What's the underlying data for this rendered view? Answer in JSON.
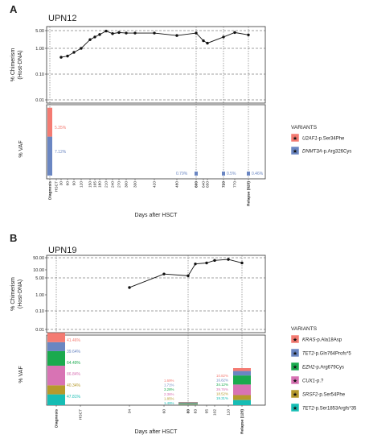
{
  "chart_data": [
    {
      "panel": "A",
      "patient": "UPN12",
      "type": "line",
      "ylabel_chimerism": "% Chimerism (Host-DNA)",
      "ylabel_vaf": "% VAF",
      "xlabel": "Days after HSCT",
      "yscale": "log",
      "yticks": [
        "5.00",
        "1.00",
        "0.10",
        "0.01"
      ],
      "xticks": [
        "Diagnosis",
        "HSCT",
        "30",
        "60",
        "90",
        "120",
        "150",
        "165",
        "180",
        "210",
        "240",
        "270",
        "300",
        "330",
        "420",
        "480",
        "600",
        "640",
        "650",
        "720",
        "770",
        "Relapse (820)"
      ],
      "bold_ticks": [
        "Diagnosis",
        "600",
        "720",
        "Relapse (820)"
      ],
      "chimerism": {
        "x": [
          30,
          60,
          90,
          120,
          150,
          165,
          180,
          210,
          240,
          270,
          300,
          330,
          420,
          480,
          600,
          640,
          650,
          720,
          770,
          820
        ],
        "y": [
          0.45,
          0.5,
          0.7,
          1.0,
          2.2,
          2.8,
          3.5,
          4.8,
          3.8,
          4.2,
          4.0,
          4.0,
          4.0,
          3.2,
          4.0,
          2.0,
          1.6,
          2.8,
          4.2,
          3.4
        ]
      },
      "legend_title": "VARIANTS",
      "variants": [
        {
          "gene": "U2AF1",
          "protein": "-p.Ser34Phe",
          "color": "#f47b72"
        },
        {
          "gene": "DNMT3A",
          "protein": "-p.Arg326Cys",
          "color": "#6a86c2"
        }
      ],
      "vaf": [
        {
          "timepoint": "Diagnosis",
          "values": [
            "5.35%",
            "7.12%"
          ]
        },
        {
          "timepoint": "600",
          "values": [
            "",
            "0.79%"
          ]
        },
        {
          "timepoint": "720",
          "values": [
            "",
            "0.5%"
          ]
        },
        {
          "timepoint": "Relapse (820)",
          "values": [
            "",
            "0.46%"
          ]
        }
      ]
    },
    {
      "panel": "B",
      "patient": "UPN19",
      "type": "line",
      "ylabel_chimerism": "% Chimerism (Host-DNA)",
      "ylabel_vaf": "% VAF",
      "xlabel": "Days after HSCT",
      "yscale": "log",
      "yticks": [
        "50.00",
        "10.00",
        "5.00",
        "1.00",
        "0.10",
        "0.01"
      ],
      "xticks": [
        "Diagnosis",
        "HSCT",
        "34",
        "60",
        "80",
        "83",
        "95",
        "102",
        "110",
        "Relapse (120)"
      ],
      "bold_ticks": [
        "Diagnosis",
        "80",
        "Relapse (120)"
      ],
      "chimerism": {
        "x": [
          34,
          60,
          80,
          83,
          95,
          102,
          110,
          120
        ],
        "y": [
          2.0,
          7.0,
          6.0,
          22.0,
          25.0,
          35.0,
          40.0,
          25.0
        ]
      },
      "legend_title": "VARIANTS",
      "variants": [
        {
          "gene": "KRAS",
          "protein": "-p.Ala18Asp",
          "color": "#f47b72"
        },
        {
          "gene": "TET2",
          "protein": "-p.Gln764Profs*5",
          "color": "#6a86c2"
        },
        {
          "gene": "EZH2",
          "protein": "-p.Arg679Cys",
          "color": "#1aaa4e"
        },
        {
          "gene": "CUX1",
          "protein": "-p.?",
          "color": "#d873b4"
        },
        {
          "gene": "SRSF2",
          "protein": "-p.Ser54Phe",
          "color": "#b69a2c"
        },
        {
          "gene": "TET2",
          "protein": "-p.Ser1853Argfs*35",
          "color": "#16bdb4"
        }
      ],
      "vaf": [
        {
          "timepoint": "Diagnosis",
          "values": [
            "41.46%",
            "39.64%",
            "64.49%",
            "86.84%",
            "40.34%",
            "47.81%"
          ]
        },
        {
          "timepoint": "80",
          "values": [
            "1.69%",
            "1.71%",
            "3.28%",
            "2.36%",
            "1.85%",
            "1.49%"
          ]
        },
        {
          "timepoint": "Relapse (120)",
          "values": [
            "10.82%",
            "16.82%",
            "34.12%",
            "39.76%",
            "18.52%",
            "19.31%"
          ]
        }
      ]
    }
  ],
  "panel_labels": [
    "A",
    "B"
  ],
  "legend_star": "★"
}
